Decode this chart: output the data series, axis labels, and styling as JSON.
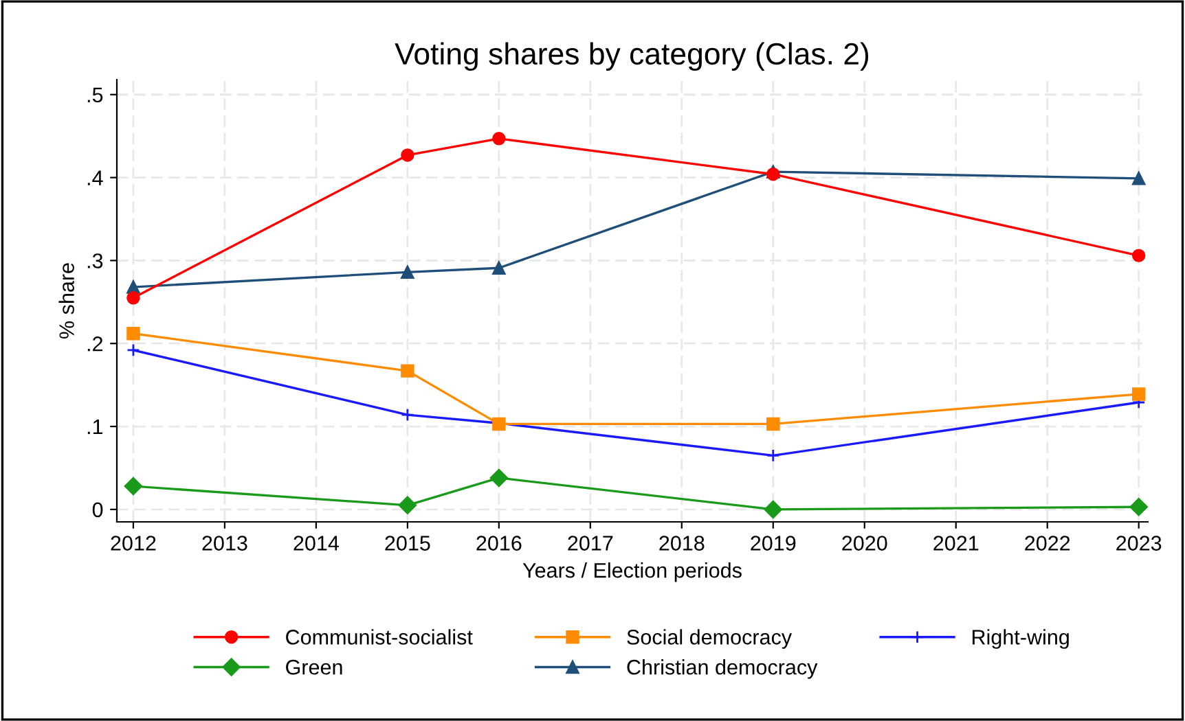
{
  "chart_data": {
    "type": "line",
    "title": "Voting shares by category (Clas. 2)",
    "xlabel": "Years / Election periods",
    "ylabel": "% share",
    "x": [
      2012,
      2015,
      2016,
      2019,
      2023
    ],
    "series": [
      {
        "name": "Communist-socialist",
        "color": "#ff0000",
        "marker": "circle",
        "values": [
          0.255,
          0.427,
          0.447,
          0.404,
          0.306
        ]
      },
      {
        "name": "Social democracy",
        "color": "#ff8c00",
        "marker": "square",
        "values": [
          0.212,
          0.167,
          0.103,
          0.103,
          0.139
        ]
      },
      {
        "name": "Right-wing",
        "color": "#1a1aff",
        "marker": "cross",
        "values": [
          0.192,
          0.114,
          0.104,
          0.065,
          0.129
        ]
      },
      {
        "name": "Green",
        "color": "#1a9a1a",
        "marker": "diamond",
        "values": [
          0.028,
          0.005,
          0.038,
          0.0,
          0.003
        ]
      },
      {
        "name": "Christian democracy",
        "color": "#1f4e79",
        "marker": "triangle",
        "values": [
          0.268,
          0.286,
          0.291,
          0.407,
          0.399
        ]
      }
    ],
    "xlim": [
      2011.82,
      2023.1
    ],
    "ylim": [
      -0.015,
      0.518
    ],
    "xticks": [
      2012,
      2013,
      2014,
      2015,
      2016,
      2017,
      2018,
      2019,
      2020,
      2021,
      2022,
      2023
    ],
    "yticks": [
      {
        "value": 0,
        "label": "0"
      },
      {
        "value": 0.1,
        "label": ".1"
      },
      {
        "value": 0.2,
        "label": ".2"
      },
      {
        "value": 0.3,
        "label": ".3"
      },
      {
        "value": 0.4,
        "label": ".4"
      },
      {
        "value": 0.5,
        "label": ".5"
      }
    ],
    "grid": true,
    "legend": "bottom",
    "line_style": "solid"
  }
}
